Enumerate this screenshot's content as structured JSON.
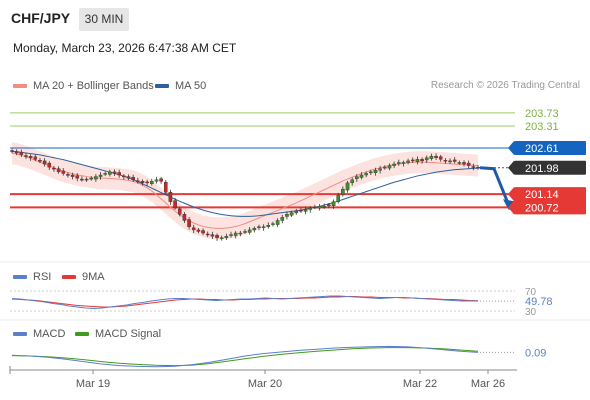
{
  "header": {
    "pair": "CHF/JPY",
    "timeframe": "30 MIN",
    "datetime": "Monday, March 23, 2026 6:47:38 AM CET"
  },
  "legend": {
    "ma20": "MA 20 + Bollinger Bands",
    "ma50": "MA 50",
    "credit": "Research © 2026 Trading Central",
    "rsi": "RSI",
    "rsi_ma": "9MA",
    "macd": "MACD",
    "macd_signal": "MACD Signal"
  },
  "colors": {
    "ma20": "#f28b82",
    "ma50": "#2e5f9e",
    "resistance": "#7cb342",
    "support": "#e53935",
    "pivot": "#1565c0",
    "current": "#333333",
    "rsi": "#5b7fcc",
    "rsi_ma": "#e53935",
    "macd": "#5b7fcc",
    "macd_signal": "#3f9b1c"
  },
  "chart_data": {
    "type": "candlestick",
    "x_ticks": [
      "Mar 19",
      "Mar 20",
      "Mar 22",
      "Mar 26"
    ],
    "ylim": [
      199.2,
      204.3
    ],
    "levels": [
      {
        "label": "203.73",
        "value": 203.73,
        "kind": "resistance"
      },
      {
        "label": "203.31",
        "value": 203.31,
        "kind": "resistance"
      },
      {
        "label": "202.61",
        "value": 202.61,
        "kind": "pivot"
      },
      {
        "label": "201.98",
        "value": 201.98,
        "kind": "current"
      },
      {
        "label": "201.14",
        "value": 201.14,
        "kind": "support"
      },
      {
        "label": "200.72",
        "value": 200.72,
        "kind": "support"
      }
    ],
    "close": [
      202.5,
      202.45,
      202.4,
      202.35,
      202.3,
      202.25,
      202.2,
      202.1,
      202.0,
      201.95,
      201.85,
      201.8,
      201.75,
      201.7,
      201.65,
      201.6,
      201.62,
      201.65,
      201.7,
      201.75,
      201.8,
      201.85,
      201.8,
      201.75,
      201.7,
      201.65,
      201.6,
      201.55,
      201.5,
      201.5,
      201.55,
      201.6,
      201.55,
      201.2,
      200.9,
      200.7,
      200.5,
      200.3,
      200.1,
      200.0,
      199.95,
      199.9,
      199.85,
      199.8,
      199.75,
      199.75,
      199.8,
      199.85,
      199.9,
      199.9,
      199.95,
      200.0,
      200.05,
      200.1,
      200.1,
      200.15,
      200.2,
      200.3,
      200.4,
      200.5,
      200.55,
      200.6,
      200.62,
      200.65,
      200.7,
      200.72,
      200.75,
      200.75,
      200.8,
      200.9,
      201.1,
      201.3,
      201.5,
      201.6,
      201.7,
      201.75,
      201.8,
      201.85,
      201.9,
      201.95,
      202.0,
      202.05,
      202.1,
      202.15,
      202.15,
      202.2,
      202.2,
      202.25,
      202.2,
      202.3,
      202.35,
      202.3,
      202.25,
      202.2,
      202.2,
      202.18,
      202.15,
      202.1,
      202.05,
      202.0,
      201.98
    ],
    "ma20": [
      202.45,
      202.42,
      202.38,
      202.33,
      202.28,
      202.22,
      202.16,
      202.1,
      202.04,
      201.98,
      201.92,
      201.87,
      201.83,
      201.79,
      201.76,
      201.73,
      201.7,
      201.68,
      201.66,
      201.65,
      201.65,
      201.64,
      201.63,
      201.62,
      201.6,
      201.58,
      201.55,
      201.5,
      201.43,
      201.34,
      201.24,
      201.12,
      200.99,
      200.86,
      200.72,
      200.6,
      200.48,
      200.38,
      200.29,
      200.22,
      200.16,
      200.11,
      200.08,
      200.06,
      200.05,
      200.05,
      200.06,
      200.08,
      200.11,
      200.15,
      200.2,
      200.26,
      200.32,
      200.38,
      200.44,
      200.5,
      200.56,
      200.62,
      200.68,
      200.74,
      200.8,
      200.86,
      200.93,
      201.0,
      201.07,
      201.14,
      201.21,
      201.28,
      201.35,
      201.42,
      201.49,
      201.56,
      201.62,
      201.68,
      201.74,
      201.8,
      201.85,
      201.9,
      201.94,
      201.98,
      202.02,
      202.05,
      202.08,
      202.1,
      202.12,
      202.14,
      202.15,
      202.16,
      202.16,
      202.16,
      202.15,
      202.14,
      202.13,
      202.12,
      202.11,
      202.1,
      202.09,
      202.08,
      202.07,
      202.06,
      202.05
    ],
    "ma50": [
      202.5,
      202.49,
      202.47,
      202.45,
      202.43,
      202.41,
      202.39,
      202.36,
      202.33,
      202.3,
      202.27,
      202.24,
      202.2,
      202.16,
      202.12,
      202.08,
      202.04,
      202.0,
      201.96,
      201.92,
      201.88,
      201.84,
      201.8,
      201.76,
      201.71,
      201.66,
      201.6,
      201.54,
      201.47,
      201.4,
      201.33,
      201.26,
      201.19,
      201.12,
      201.05,
      200.98,
      200.91,
      200.85,
      200.79,
      200.73,
      200.68,
      200.63,
      200.59,
      200.55,
      200.52,
      200.49,
      200.47,
      200.45,
      200.44,
      200.43,
      200.43,
      200.43,
      200.44,
      200.45,
      200.47,
      200.49,
      200.51,
      200.53,
      200.55,
      200.57,
      200.59,
      200.61,
      200.63,
      200.66,
      200.69,
      200.72,
      200.75,
      200.79,
      200.83,
      200.87,
      200.92,
      200.97,
      201.02,
      201.07,
      201.12,
      201.17,
      201.22,
      201.27,
      201.32,
      201.37,
      201.42,
      201.47,
      201.52,
      201.56,
      201.6,
      201.64,
      201.68,
      201.72,
      201.75,
      201.78,
      201.81,
      201.84,
      201.86,
      201.88,
      201.9,
      201.92,
      201.93,
      201.94,
      201.95,
      201.96,
      201.97
    ],
    "bb_width": 0.35,
    "rsi": {
      "ylim": [
        20,
        80
      ],
      "levels": [
        {
          "label": "70",
          "value": 70
        },
        {
          "label": "30",
          "value": 30
        }
      ],
      "value_label": "49.78",
      "rsi": [
        55,
        54,
        52,
        50,
        48,
        45,
        43,
        40,
        38,
        36,
        35,
        36,
        38,
        40,
        42,
        45,
        47,
        50,
        52,
        54,
        55,
        55,
        54,
        53,
        52,
        51,
        52,
        53,
        54,
        54,
        55,
        56,
        55,
        54,
        55,
        56,
        57,
        58,
        59,
        60,
        60,
        59,
        58,
        57,
        56,
        55,
        56,
        57,
        57,
        56,
        55,
        54,
        53,
        52,
        51,
        50,
        50,
        49.78
      ],
      "ma": [
        54,
        53,
        52,
        51,
        49,
        47,
        45,
        43,
        41,
        40,
        39,
        38,
        38,
        39,
        40,
        42,
        44,
        46,
        48,
        50,
        52,
        53,
        54,
        54,
        53,
        53,
        52,
        52,
        53,
        53,
        54,
        54,
        55,
        55,
        55,
        55,
        56,
        56,
        57,
        58,
        58,
        59,
        59,
        58,
        58,
        57,
        57,
        57,
        56,
        56,
        55,
        55,
        54,
        53,
        53,
        52,
        51,
        50.5
      ]
    },
    "macd": {
      "value_label": "0.09",
      "macd": [
        0.02,
        0.0,
        -0.03,
        -0.08,
        -0.14,
        -0.2,
        -0.24,
        -0.26,
        -0.27,
        -0.26,
        -0.22,
        -0.16,
        -0.08,
        0.0,
        0.06,
        0.1,
        0.14,
        0.17,
        0.2,
        0.22,
        0.23,
        0.24,
        0.23,
        0.2,
        0.16,
        0.12,
        0.09
      ],
      "signal": [
        0.01,
        0.0,
        -0.02,
        -0.05,
        -0.09,
        -0.14,
        -0.18,
        -0.21,
        -0.23,
        -0.24,
        -0.23,
        -0.19,
        -0.13,
        -0.07,
        -0.01,
        0.04,
        0.08,
        0.12,
        0.15,
        0.18,
        0.2,
        0.21,
        0.21,
        0.2,
        0.18,
        0.15,
        0.12
      ]
    }
  }
}
